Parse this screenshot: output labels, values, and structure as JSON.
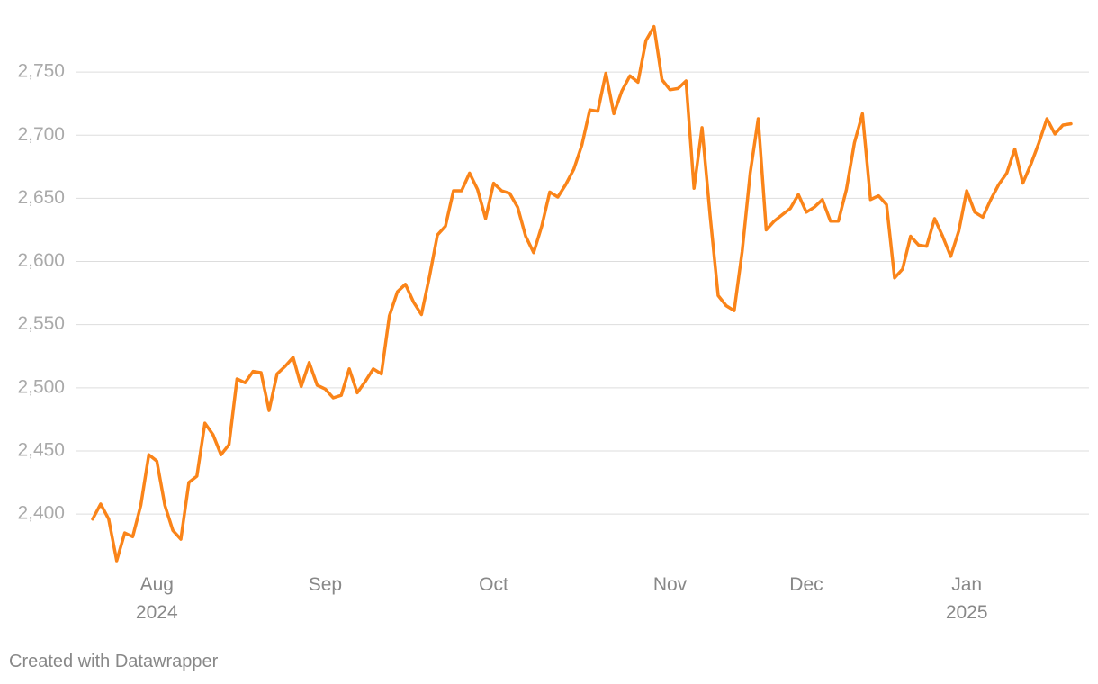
{
  "chart_data": {
    "type": "line",
    "categories": [
      null,
      null,
      null,
      null,
      null,
      null,
      null,
      null,
      "Aug\n2024",
      null,
      null,
      null,
      null,
      null,
      null,
      null,
      null,
      null,
      null,
      null,
      null,
      null,
      null,
      null,
      null,
      null,
      null,
      null,
      null,
      "Sep",
      null,
      null,
      null,
      null,
      null,
      null,
      null,
      null,
      null,
      null,
      null,
      null,
      null,
      null,
      null,
      null,
      null,
      null,
      null,
      null,
      "Oct",
      null,
      null,
      null,
      null,
      null,
      null,
      null,
      null,
      null,
      null,
      null,
      null,
      null,
      null,
      null,
      null,
      null,
      null,
      null,
      null,
      null,
      "Nov",
      null,
      null,
      null,
      null,
      null,
      null,
      null,
      null,
      null,
      null,
      null,
      null,
      null,
      null,
      null,
      null,
      "Dec",
      null,
      null,
      null,
      null,
      null,
      null,
      null,
      null,
      null,
      null,
      null,
      null,
      null,
      null,
      null,
      null,
      null,
      null,
      null,
      "Jan\n2025",
      null,
      null,
      null,
      null,
      null,
      null,
      null,
      null,
      null,
      null,
      null,
      null,
      null
    ],
    "series": [
      {
        "color": "#fa8419",
        "values": [
          2396,
          2408,
          2396,
          2363,
          2385,
          2382,
          2407,
          2447,
          2442,
          2407,
          2387,
          2380,
          2425,
          2430,
          2472,
          2463,
          2447,
          2455,
          2507,
          2504,
          2513,
          2512,
          2482,
          2511,
          2517,
          2524,
          2501,
          2520,
          2502,
          2499,
          2492,
          2494,
          2515,
          2496,
          2505,
          2515,
          2511,
          2557,
          2576,
          2582,
          2568,
          2558,
          2588,
          2621,
          2628,
          2656,
          2656,
          2670,
          2657,
          2634,
          2662,
          2656,
          2654,
          2643,
          2620,
          2607,
          2628,
          2655,
          2651,
          2661,
          2673,
          2692,
          2720,
          2719,
          2749,
          2717,
          2735,
          2747,
          2742,
          2775,
          2786,
          2744,
          2736,
          2737,
          2743,
          2658,
          2706,
          2636,
          2573,
          2565,
          2561,
          2608,
          2670,
          2713,
          2625,
          2632,
          2637,
          2642,
          2653,
          2639,
          2643,
          2649,
          2632,
          2632,
          2657,
          2694,
          2717,
          2649,
          2652,
          2645,
          2587,
          2594,
          2620,
          2613,
          2612,
          2634,
          2620,
          2604,
          2624,
          2656,
          2639,
          2635,
          2649,
          2661,
          2670,
          2689,
          2662,
          2677,
          2694,
          2713,
          2701,
          2708,
          2709
        ]
      }
    ],
    "ylim": [
      2358,
      2800
    ],
    "yticks": [
      {
        "value": 2400,
        "label": "2,400"
      },
      {
        "value": 2450,
        "label": "2,450"
      },
      {
        "value": 2500,
        "label": "2,500"
      },
      {
        "value": 2550,
        "label": "2,550"
      },
      {
        "value": 2600,
        "label": "2,600"
      },
      {
        "value": 2650,
        "label": "2,650"
      },
      {
        "value": 2700,
        "label": "2,700"
      },
      {
        "value": 2750,
        "label": "2,750"
      }
    ],
    "grid": true,
    "footer": "Created with Datawrapper"
  }
}
